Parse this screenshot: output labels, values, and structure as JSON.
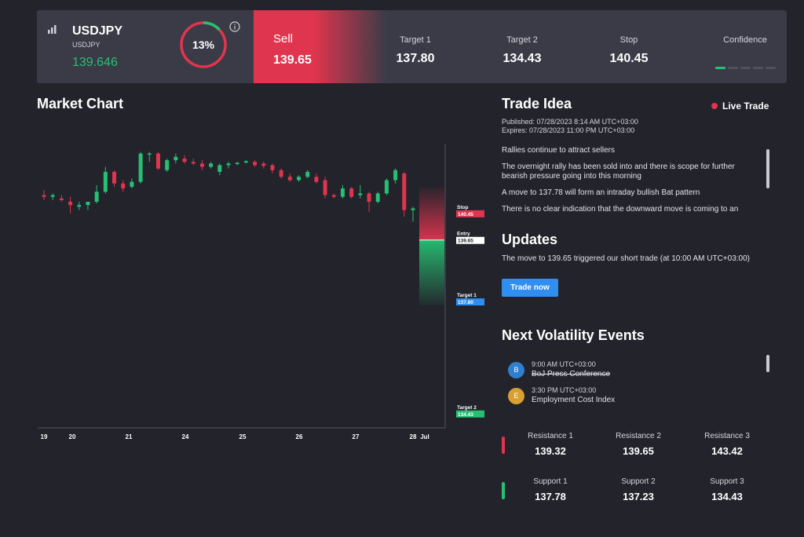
{
  "header": {
    "symbol": "USDJPY",
    "symbol_sub": "USDJPY",
    "price": "139.646",
    "confidence_pct": 13,
    "confidence_label": "13%",
    "signal_label": "Sell",
    "signal_price": "139.65",
    "targets": [
      {
        "label": "Target 1",
        "value": "137.80"
      },
      {
        "label": "Target 2",
        "value": "134.43"
      },
      {
        "label": "Stop",
        "value": "140.45"
      }
    ],
    "confidence_title": "Confidence",
    "confidence_segments_total": 5,
    "confidence_segments_on": 1,
    "colors": {
      "sell": "#e0354e",
      "up": "#27c073",
      "panel": "#3a3b47"
    }
  },
  "chart": {
    "title": "Market Chart"
  },
  "chart_data": {
    "type": "candlestick",
    "x_ticks": [
      "19",
      "20",
      "21",
      "24",
      "25",
      "26",
      "27",
      "28",
      "Jul"
    ],
    "ylim": [
      134.0,
      142.5
    ],
    "candles": [
      {
        "o": 141.0,
        "h": 141.15,
        "l": 140.85,
        "c": 140.95
      },
      {
        "o": 140.95,
        "h": 141.05,
        "l": 140.85,
        "c": 141.0
      },
      {
        "o": 140.9,
        "h": 141.0,
        "l": 140.8,
        "c": 140.85
      },
      {
        "o": 140.8,
        "h": 140.95,
        "l": 140.45,
        "c": 140.7
      },
      {
        "o": 140.65,
        "h": 140.8,
        "l": 140.55,
        "c": 140.7
      },
      {
        "o": 140.7,
        "h": 140.8,
        "l": 140.55,
        "c": 140.8
      },
      {
        "o": 140.8,
        "h": 141.3,
        "l": 140.75,
        "c": 141.1
      },
      {
        "o": 141.1,
        "h": 141.85,
        "l": 141.05,
        "c": 141.7
      },
      {
        "o": 141.7,
        "h": 141.75,
        "l": 141.25,
        "c": 141.35
      },
      {
        "o": 141.35,
        "h": 141.45,
        "l": 141.1,
        "c": 141.2
      },
      {
        "o": 141.25,
        "h": 141.5,
        "l": 141.2,
        "c": 141.4
      },
      {
        "o": 141.4,
        "h": 142.3,
        "l": 141.35,
        "c": 142.25
      },
      {
        "o": 142.25,
        "h": 142.3,
        "l": 142.0,
        "c": 142.25
      },
      {
        "o": 142.25,
        "h": 142.3,
        "l": 141.75,
        "c": 141.8
      },
      {
        "o": 141.75,
        "h": 142.1,
        "l": 141.7,
        "c": 142.05
      },
      {
        "o": 142.05,
        "h": 142.25,
        "l": 141.95,
        "c": 142.15
      },
      {
        "o": 142.1,
        "h": 142.2,
        "l": 141.95,
        "c": 142.0
      },
      {
        "o": 142.0,
        "h": 142.1,
        "l": 141.9,
        "c": 141.95
      },
      {
        "o": 141.95,
        "h": 142.05,
        "l": 141.75,
        "c": 141.85
      },
      {
        "o": 141.85,
        "h": 142.0,
        "l": 141.8,
        "c": 141.95
      },
      {
        "o": 141.7,
        "h": 141.95,
        "l": 141.6,
        "c": 141.9
      },
      {
        "o": 141.9,
        "h": 142.0,
        "l": 141.8,
        "c": 141.95
      },
      {
        "o": 141.95,
        "h": 142.0,
        "l": 141.9,
        "c": 141.97
      },
      {
        "o": 141.98,
        "h": 142.05,
        "l": 141.95,
        "c": 142.02
      },
      {
        "o": 142.0,
        "h": 142.05,
        "l": 141.85,
        "c": 141.9
      },
      {
        "o": 141.95,
        "h": 142.0,
        "l": 141.8,
        "c": 141.88
      },
      {
        "o": 141.9,
        "h": 141.95,
        "l": 141.65,
        "c": 141.75
      },
      {
        "o": 141.75,
        "h": 141.8,
        "l": 141.5,
        "c": 141.55
      },
      {
        "o": 141.55,
        "h": 141.65,
        "l": 141.4,
        "c": 141.45
      },
      {
        "o": 141.45,
        "h": 141.6,
        "l": 141.4,
        "c": 141.55
      },
      {
        "o": 141.55,
        "h": 141.75,
        "l": 141.5,
        "c": 141.7
      },
      {
        "o": 141.55,
        "h": 141.65,
        "l": 141.35,
        "c": 141.4
      },
      {
        "o": 141.45,
        "h": 141.55,
        "l": 140.9,
        "c": 141.0
      },
      {
        "o": 141.0,
        "h": 141.05,
        "l": 140.9,
        "c": 140.95
      },
      {
        "o": 140.95,
        "h": 141.3,
        "l": 140.9,
        "c": 141.2
      },
      {
        "o": 141.2,
        "h": 141.25,
        "l": 140.9,
        "c": 140.95
      },
      {
        "o": 141.0,
        "h": 141.3,
        "l": 140.9,
        "c": 141.05
      },
      {
        "o": 141.05,
        "h": 141.1,
        "l": 140.5,
        "c": 140.8
      },
      {
        "o": 140.8,
        "h": 141.1,
        "l": 140.75,
        "c": 141.05
      },
      {
        "o": 141.05,
        "h": 141.5,
        "l": 141.0,
        "c": 141.45
      },
      {
        "o": 141.45,
        "h": 141.8,
        "l": 141.35,
        "c": 141.75
      },
      {
        "o": 141.65,
        "h": 141.7,
        "l": 140.35,
        "c": 140.55
      },
      {
        "o": 140.55,
        "h": 140.65,
        "l": 140.2,
        "c": 140.6
      }
    ],
    "levels": [
      {
        "label": "Stop",
        "value": 140.45,
        "tag": "140.45",
        "color": "#e0354e"
      },
      {
        "label": "Entry",
        "value": 139.65,
        "tag": "139.65",
        "color": "#ffffff"
      },
      {
        "label": "Target 1",
        "value": 137.8,
        "tag": "137.80",
        "color": "#2f8ef0"
      },
      {
        "label": "Target 2",
        "value": 134.43,
        "tag": "134.43",
        "color": "#27c073"
      }
    ]
  },
  "trade_idea": {
    "title": "Trade Idea",
    "live_label": "Live Trade",
    "published": "Published: 07/28/2023 8:14 AM UTC+03:00",
    "expires": "Expires: 07/28/2023 11:00 PM UTC+03:00",
    "paragraphs": [
      "Rallies continue to attract sellers",
      "The overnight rally has been sold into and there is scope for further bearish pressure going into this morning",
      "A move to 137.78 will form an intraday bullish Bat pattern",
      "There is no clear indication that the downward move is coming to an"
    ]
  },
  "updates": {
    "title": "Updates",
    "text": "The move to 139.65 triggered our short trade (at 10:00 AM UTC+03:00)",
    "button": "Trade now"
  },
  "events": {
    "title": "Next Volatility Events",
    "items": [
      {
        "badge": "B",
        "time": "9:00 AM UTC+03:00",
        "name": "BoJ Press Conference",
        "color": "#2f7fd0"
      },
      {
        "badge": "E",
        "time": "3:30 PM UTC+03:00",
        "name": "Employment Cost Index",
        "color": "#d9a030"
      }
    ]
  },
  "levels": {
    "resistance": [
      {
        "label": "Resistance 1",
        "value": "139.32"
      },
      {
        "label": "Resistance 2",
        "value": "139.65"
      },
      {
        "label": "Resistance 3",
        "value": "143.42"
      }
    ],
    "support": [
      {
        "label": "Support 1",
        "value": "137.78"
      },
      {
        "label": "Support 2",
        "value": "137.23"
      },
      {
        "label": "Support 3",
        "value": "134.43"
      }
    ]
  }
}
